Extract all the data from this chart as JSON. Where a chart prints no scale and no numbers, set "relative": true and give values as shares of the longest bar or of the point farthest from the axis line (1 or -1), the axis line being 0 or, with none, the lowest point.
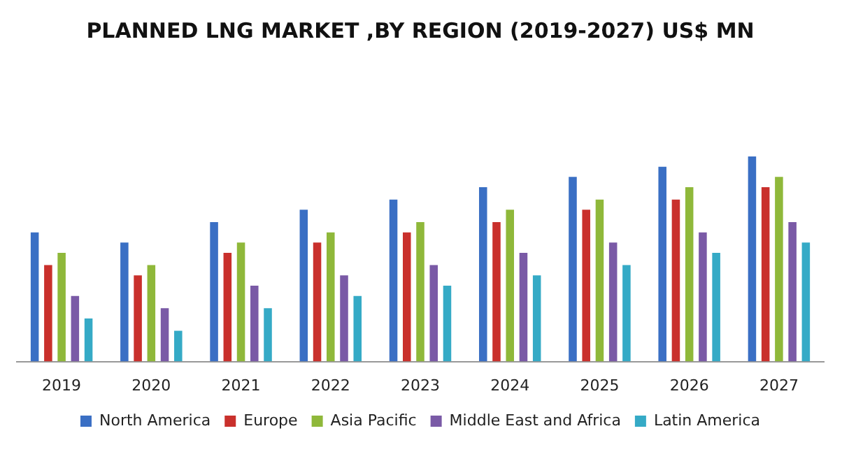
{
  "chart_data": {
    "type": "bar",
    "title": "PLANNED LNG MARKET ,BY REGION (2019-2027) US$ MN",
    "relative": true,
    "legend": "bottom",
    "categories": [
      "2019",
      "2020",
      "2021",
      "2022",
      "2023",
      "2024",
      "2025",
      "2026",
      "2027"
    ],
    "series": [
      {
        "name": "North America",
        "color": "#3a6fc4",
        "values": [
          0.63,
          0.58,
          0.68,
          0.74,
          0.79,
          0.85,
          0.9,
          0.95,
          1
        ]
      },
      {
        "name": "Europe",
        "color": "#c9302c",
        "values": [
          0.47,
          0.42,
          0.53,
          0.58,
          0.63,
          0.68,
          0.74,
          0.79,
          0.85
        ]
      },
      {
        "name": "Asia Pacific",
        "color": "#8fb83a",
        "values": [
          0.53,
          0.47,
          0.58,
          0.63,
          0.68,
          0.74,
          0.79,
          0.85,
          0.9
        ]
      },
      {
        "name": "Middle East and Africa",
        "color": "#7a5aa6",
        "values": [
          0.32,
          0.26,
          0.37,
          0.42,
          0.47,
          0.53,
          0.58,
          0.63,
          0.68
        ]
      },
      {
        "name": "Latin America",
        "color": "#35aac6",
        "values": [
          0.21,
          0.15,
          0.26,
          0.32,
          0.37,
          0.42,
          0.47,
          0.53,
          0.58
        ]
      }
    ]
  }
}
